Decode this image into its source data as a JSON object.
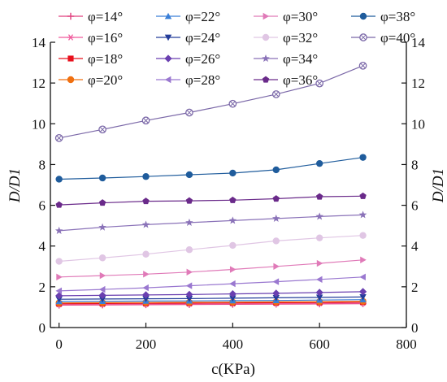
{
  "chart_data": {
    "type": "line",
    "xlabel": "c(KPa)",
    "ylabel_left": "D/D1",
    "ylabel_right": "D/D1",
    "xlim": [
      -20,
      800
    ],
    "ylim": [
      0,
      14
    ],
    "xticks": [
      0,
      200,
      400,
      600,
      800
    ],
    "yticks": [
      0,
      2,
      4,
      6,
      8,
      10,
      12,
      14
    ],
    "x": [
      0,
      100,
      200,
      300,
      400,
      500,
      600,
      700
    ],
    "series": [
      {
        "name": "φ=14°",
        "color": "#e0407f",
        "marker": "plus",
        "values": [
          1.1,
          1.11,
          1.12,
          1.13,
          1.14,
          1.15,
          1.16,
          1.17
        ]
      },
      {
        "name": "φ=16°",
        "color": "#f05a9c",
        "marker": "star6",
        "values": [
          1.13,
          1.14,
          1.15,
          1.16,
          1.17,
          1.18,
          1.19,
          1.2
        ]
      },
      {
        "name": "φ=18°",
        "color": "#e8101c",
        "marker": "square",
        "values": [
          1.17,
          1.18,
          1.19,
          1.2,
          1.21,
          1.22,
          1.23,
          1.25
        ]
      },
      {
        "name": "φ=20°",
        "color": "#f07010",
        "marker": "circle",
        "values": [
          1.21,
          1.22,
          1.23,
          1.24,
          1.25,
          1.26,
          1.27,
          1.29
        ]
      },
      {
        "name": "φ=22°",
        "color": "#3a7fd8",
        "marker": "triangle-up",
        "values": [
          1.28,
          1.29,
          1.3,
          1.31,
          1.32,
          1.33,
          1.35,
          1.37
        ]
      },
      {
        "name": "φ=24°",
        "color": "#243d9a",
        "marker": "triangle-down",
        "values": [
          1.39,
          1.4,
          1.41,
          1.42,
          1.44,
          1.46,
          1.48,
          1.5
        ]
      },
      {
        "name": "φ=26°",
        "color": "#6a3fb0",
        "marker": "diamond",
        "values": [
          1.56,
          1.58,
          1.6,
          1.62,
          1.65,
          1.68,
          1.72,
          1.76
        ]
      },
      {
        "name": "φ=28°",
        "color": "#9a78d0",
        "marker": "triangle-left",
        "values": [
          1.8,
          1.87,
          1.95,
          2.05,
          2.15,
          2.25,
          2.36,
          2.48
        ]
      },
      {
        "name": "φ=30°",
        "color": "#e07ab8",
        "marker": "triangle-right",
        "values": [
          2.48,
          2.55,
          2.62,
          2.72,
          2.85,
          3.0,
          3.15,
          3.32
        ]
      },
      {
        "name": "φ=32°",
        "color": "#e0c6e4",
        "marker": "circle",
        "values": [
          3.25,
          3.42,
          3.6,
          3.82,
          4.03,
          4.25,
          4.4,
          4.52
        ]
      },
      {
        "name": "φ=34°",
        "color": "#8a72b8",
        "marker": "star5",
        "values": [
          4.75,
          4.92,
          5.05,
          5.15,
          5.25,
          5.35,
          5.45,
          5.53
        ]
      },
      {
        "name": "φ=36°",
        "color": "#6a2a8a",
        "marker": "pentagon",
        "values": [
          6.02,
          6.12,
          6.2,
          6.22,
          6.25,
          6.32,
          6.42,
          6.45
        ]
      },
      {
        "name": "φ=38°",
        "color": "#1f5c9c",
        "marker": "circle",
        "values": [
          7.28,
          7.34,
          7.41,
          7.5,
          7.58,
          7.74,
          8.05,
          8.35
        ]
      },
      {
        "name": "φ=40°",
        "color": "#7b68a8",
        "marker": "circle-x",
        "values": [
          9.3,
          9.72,
          10.16,
          10.55,
          10.98,
          11.45,
          11.98,
          12.85
        ]
      }
    ]
  }
}
